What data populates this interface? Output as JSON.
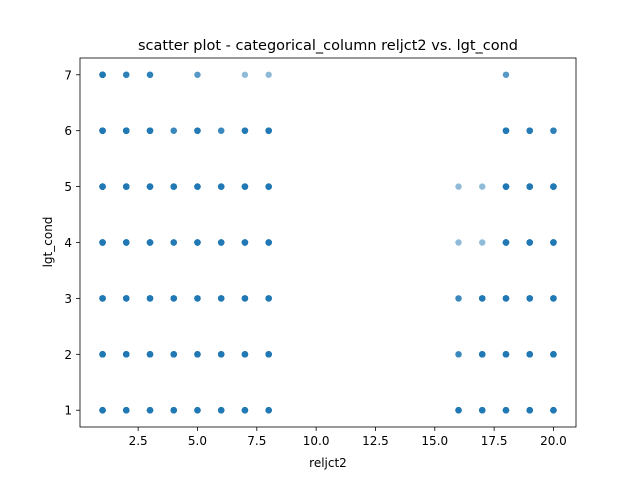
{
  "chart_data": {
    "type": "scatter",
    "title": "scatter plot - categorical_column reljct2 vs. lgt_cond",
    "xlabel": "reljct2",
    "ylabel": "lgt_cond",
    "xlim": [
      0.05,
      20.95
    ],
    "ylim": [
      0.7,
      7.3
    ],
    "x_ticks": [
      2.5,
      5.0,
      7.5,
      10.0,
      12.5,
      15.0,
      17.5,
      20.0
    ],
    "x_tick_labels": [
      "2.5",
      "5.0",
      "7.5",
      "10.0",
      "12.5",
      "15.0",
      "17.5",
      "20.0"
    ],
    "y_ticks": [
      1,
      2,
      3,
      4,
      5,
      6,
      7
    ],
    "y_tick_labels": [
      "1",
      "2",
      "3",
      "4",
      "5",
      "6",
      "7"
    ],
    "grid": false,
    "legend": "none",
    "marker_color": "#1f77b4",
    "marker_alpha": 0.5,
    "series": [
      {
        "points": [
          {
            "x": 1,
            "y": 1,
            "n": 12
          },
          {
            "x": 1,
            "y": 2,
            "n": 12
          },
          {
            "x": 1,
            "y": 3,
            "n": 12
          },
          {
            "x": 1,
            "y": 4,
            "n": 12
          },
          {
            "x": 1,
            "y": 5,
            "n": 12
          },
          {
            "x": 1,
            "y": 6,
            "n": 12
          },
          {
            "x": 1,
            "y": 7,
            "n": 12
          },
          {
            "x": 2,
            "y": 1,
            "n": 10
          },
          {
            "x": 2,
            "y": 2,
            "n": 10
          },
          {
            "x": 2,
            "y": 3,
            "n": 10
          },
          {
            "x": 2,
            "y": 4,
            "n": 10
          },
          {
            "x": 2,
            "y": 5,
            "n": 10
          },
          {
            "x": 2,
            "y": 6,
            "n": 10
          },
          {
            "x": 2,
            "y": 7,
            "n": 4
          },
          {
            "x": 3,
            "y": 1,
            "n": 10
          },
          {
            "x": 3,
            "y": 2,
            "n": 10
          },
          {
            "x": 3,
            "y": 3,
            "n": 10
          },
          {
            "x": 3,
            "y": 4,
            "n": 10
          },
          {
            "x": 3,
            "y": 5,
            "n": 10
          },
          {
            "x": 3,
            "y": 6,
            "n": 10
          },
          {
            "x": 3,
            "y": 7,
            "n": 4
          },
          {
            "x": 4,
            "y": 1,
            "n": 8
          },
          {
            "x": 4,
            "y": 2,
            "n": 8
          },
          {
            "x": 4,
            "y": 3,
            "n": 8
          },
          {
            "x": 4,
            "y": 4,
            "n": 6
          },
          {
            "x": 4,
            "y": 5,
            "n": 8
          },
          {
            "x": 4,
            "y": 6,
            "n": 3
          },
          {
            "x": 5,
            "y": 1,
            "n": 8
          },
          {
            "x": 5,
            "y": 2,
            "n": 8
          },
          {
            "x": 5,
            "y": 3,
            "n": 8
          },
          {
            "x": 5,
            "y": 4,
            "n": 8
          },
          {
            "x": 5,
            "y": 5,
            "n": 8
          },
          {
            "x": 5,
            "y": 6,
            "n": 6
          },
          {
            "x": 5,
            "y": 7,
            "n": 2
          },
          {
            "x": 6,
            "y": 1,
            "n": 8
          },
          {
            "x": 6,
            "y": 2,
            "n": 8
          },
          {
            "x": 6,
            "y": 3,
            "n": 8
          },
          {
            "x": 6,
            "y": 4,
            "n": 8
          },
          {
            "x": 6,
            "y": 5,
            "n": 8
          },
          {
            "x": 6,
            "y": 6,
            "n": 3
          },
          {
            "x": 7,
            "y": 1,
            "n": 8
          },
          {
            "x": 7,
            "y": 2,
            "n": 8
          },
          {
            "x": 7,
            "y": 3,
            "n": 8
          },
          {
            "x": 7,
            "y": 4,
            "n": 8
          },
          {
            "x": 7,
            "y": 5,
            "n": 8
          },
          {
            "x": 7,
            "y": 6,
            "n": 6
          },
          {
            "x": 7,
            "y": 7,
            "n": 1
          },
          {
            "x": 8,
            "y": 1,
            "n": 8
          },
          {
            "x": 8,
            "y": 2,
            "n": 8
          },
          {
            "x": 8,
            "y": 3,
            "n": 8
          },
          {
            "x": 8,
            "y": 4,
            "n": 8
          },
          {
            "x": 8,
            "y": 5,
            "n": 8
          },
          {
            "x": 8,
            "y": 6,
            "n": 8
          },
          {
            "x": 8,
            "y": 7,
            "n": 1
          },
          {
            "x": 16,
            "y": 1,
            "n": 8
          },
          {
            "x": 16,
            "y": 2,
            "n": 3
          },
          {
            "x": 16,
            "y": 3,
            "n": 3
          },
          {
            "x": 16,
            "y": 4,
            "n": 1
          },
          {
            "x": 16,
            "y": 5,
            "n": 1
          },
          {
            "x": 17,
            "y": 1,
            "n": 8
          },
          {
            "x": 17,
            "y": 2,
            "n": 8
          },
          {
            "x": 17,
            "y": 3,
            "n": 8
          },
          {
            "x": 17,
            "y": 4,
            "n": 1
          },
          {
            "x": 17,
            "y": 5,
            "n": 1
          },
          {
            "x": 18,
            "y": 1,
            "n": 10
          },
          {
            "x": 18,
            "y": 2,
            "n": 10
          },
          {
            "x": 18,
            "y": 3,
            "n": 10
          },
          {
            "x": 18,
            "y": 4,
            "n": 10
          },
          {
            "x": 18,
            "y": 5,
            "n": 10
          },
          {
            "x": 18,
            "y": 6,
            "n": 8
          },
          {
            "x": 18,
            "y": 7,
            "n": 2
          },
          {
            "x": 19,
            "y": 1,
            "n": 10
          },
          {
            "x": 19,
            "y": 2,
            "n": 10
          },
          {
            "x": 19,
            "y": 3,
            "n": 10
          },
          {
            "x": 19,
            "y": 4,
            "n": 10
          },
          {
            "x": 19,
            "y": 5,
            "n": 10
          },
          {
            "x": 19,
            "y": 6,
            "n": 6
          },
          {
            "x": 20,
            "y": 1,
            "n": 10
          },
          {
            "x": 20,
            "y": 2,
            "n": 10
          },
          {
            "x": 20,
            "y": 3,
            "n": 10
          },
          {
            "x": 20,
            "y": 4,
            "n": 10
          },
          {
            "x": 20,
            "y": 5,
            "n": 10
          },
          {
            "x": 20,
            "y": 6,
            "n": 4
          }
        ]
      }
    ]
  }
}
